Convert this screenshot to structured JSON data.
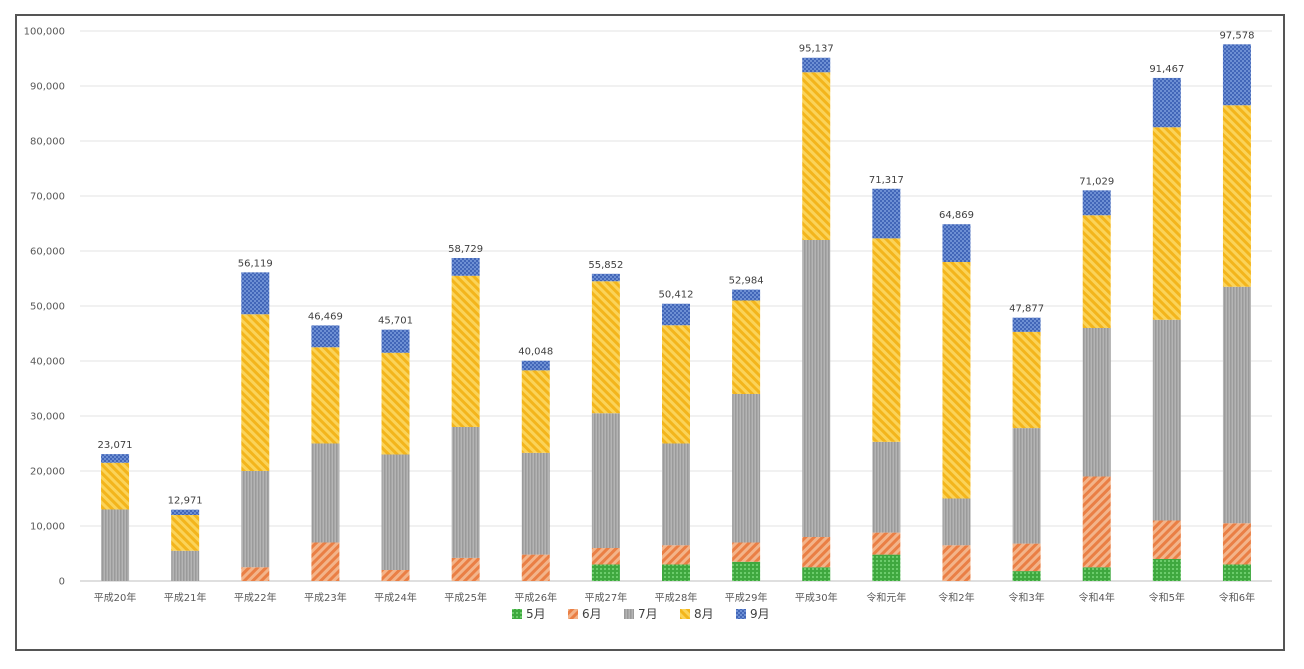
{
  "chart_data": {
    "type": "bar",
    "stacked": true,
    "categories": [
      "平成20年",
      "平成21年",
      "平成22年",
      "平成23年",
      "平成24年",
      "平成25年",
      "平成26年",
      "平成27年",
      "平成28年",
      "平成29年",
      "平成30年",
      "令和元年",
      "令和2年",
      "令和3年",
      "令和4年",
      "令和5年",
      "令和6年"
    ],
    "series": [
      {
        "name": "5月",
        "color": "#4db34d",
        "values": [
          0,
          0,
          0,
          0,
          0,
          0,
          0,
          3000,
          3000,
          3500,
          2500,
          4800,
          0,
          1800,
          2500,
          4000,
          3000
        ]
      },
      {
        "name": "6月",
        "color": "#f0a070",
        "values": [
          0,
          0,
          2500,
          7000,
          2000,
          4200,
          4800,
          3000,
          3500,
          3500,
          5500,
          4000,
          6500,
          5000,
          16500,
          7000,
          7500
        ]
      },
      {
        "name": "7月",
        "color": "#aaaaaa",
        "values": [
          13000,
          5500,
          17500,
          18000,
          21000,
          23800,
          18500,
          24500,
          18500,
          27000,
          54000,
          16500,
          8500,
          21000,
          27000,
          36500,
          43000
        ]
      },
      {
        "name": "8月",
        "color": "#f7c12a",
        "values": [
          8500,
          6500,
          28500,
          17500,
          18500,
          27500,
          15000,
          24000,
          21500,
          17000,
          30500,
          37000,
          43000,
          17500,
          20500,
          35000,
          33000
        ]
      },
      {
        "name": "9月",
        "color": "#5b80c8",
        "values": [
          1571,
          971,
          7619,
          3969,
          4201,
          3229,
          1748,
          1352,
          3912,
          1984,
          2637,
          9017,
          6869,
          2577,
          4529,
          8967,
          11078
        ]
      }
    ],
    "totals": [
      "23,071",
      "12,971",
      "56,119",
      "46,469",
      "45,701",
      "58,729",
      "40,048",
      "55,852",
      "50,412",
      "52,984",
      "95,137",
      "71,317",
      "64,869",
      "47,877",
      "71,029",
      "91,467",
      "97,578"
    ],
    "yticks": [
      "0",
      "10,000",
      "20,000",
      "30,000",
      "40,000",
      "50,000",
      "60,000",
      "70,000",
      "80,000",
      "90,000",
      "100,000"
    ],
    "ylim": [
      0,
      100000
    ],
    "grid": true,
    "legend": "bottom"
  }
}
